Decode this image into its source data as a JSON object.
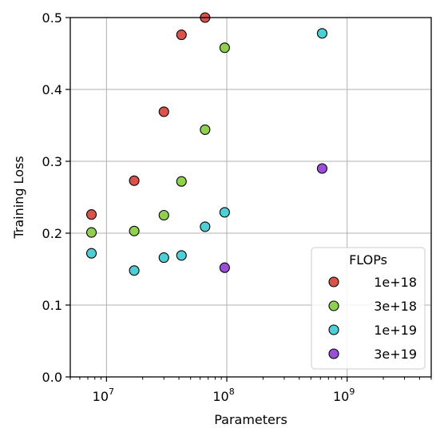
{
  "chart_data": {
    "type": "scatter",
    "title": "",
    "xlabel": "Parameters",
    "ylabel": "Training Loss",
    "xscale": "log",
    "xlim": [
      5000000,
      5000000000
    ],
    "ylim": [
      0,
      0.5
    ],
    "x_ticks": [
      {
        "value": 10000000,
        "base": "10",
        "exp": "7"
      },
      {
        "value": 100000000,
        "base": "10",
        "exp": "8"
      },
      {
        "value": 1000000000,
        "base": "10",
        "exp": "9"
      }
    ],
    "y_ticks": [
      "0.0",
      "0.1",
      "0.2",
      "0.3",
      "0.4",
      "0.5"
    ],
    "grid": true,
    "legend": {
      "title": "FLOPs",
      "placement": "bottom-right"
    },
    "series": [
      {
        "name": "1e+18",
        "color": "#d9534a",
        "points": [
          {
            "x": 7500000,
            "y": 0.226
          },
          {
            "x": 17000000,
            "y": 0.273
          },
          {
            "x": 30000000,
            "y": 0.369
          },
          {
            "x": 42000000,
            "y": 0.476
          },
          {
            "x": 66000000,
            "y": 0.5
          }
        ]
      },
      {
        "name": "3e+18",
        "color": "#8fd14f",
        "points": [
          {
            "x": 7500000,
            "y": 0.201
          },
          {
            "x": 17000000,
            "y": 0.203
          },
          {
            "x": 30000000,
            "y": 0.225
          },
          {
            "x": 42000000,
            "y": 0.272
          },
          {
            "x": 66000000,
            "y": 0.344
          },
          {
            "x": 96000000,
            "y": 0.458
          }
        ]
      },
      {
        "name": "1e+19",
        "color": "#4ecfd6",
        "points": [
          {
            "x": 7500000,
            "y": 0.172
          },
          {
            "x": 17000000,
            "y": 0.148
          },
          {
            "x": 30000000,
            "y": 0.166
          },
          {
            "x": 42000000,
            "y": 0.169
          },
          {
            "x": 66000000,
            "y": 0.209
          },
          {
            "x": 96000000,
            "y": 0.229
          },
          {
            "x": 620000000,
            "y": 0.478
          }
        ]
      },
      {
        "name": "3e+19",
        "color": "#9b4fd9",
        "points": [
          {
            "x": 96000000,
            "y": 0.152
          },
          {
            "x": 620000000,
            "y": 0.29
          }
        ]
      }
    ]
  }
}
